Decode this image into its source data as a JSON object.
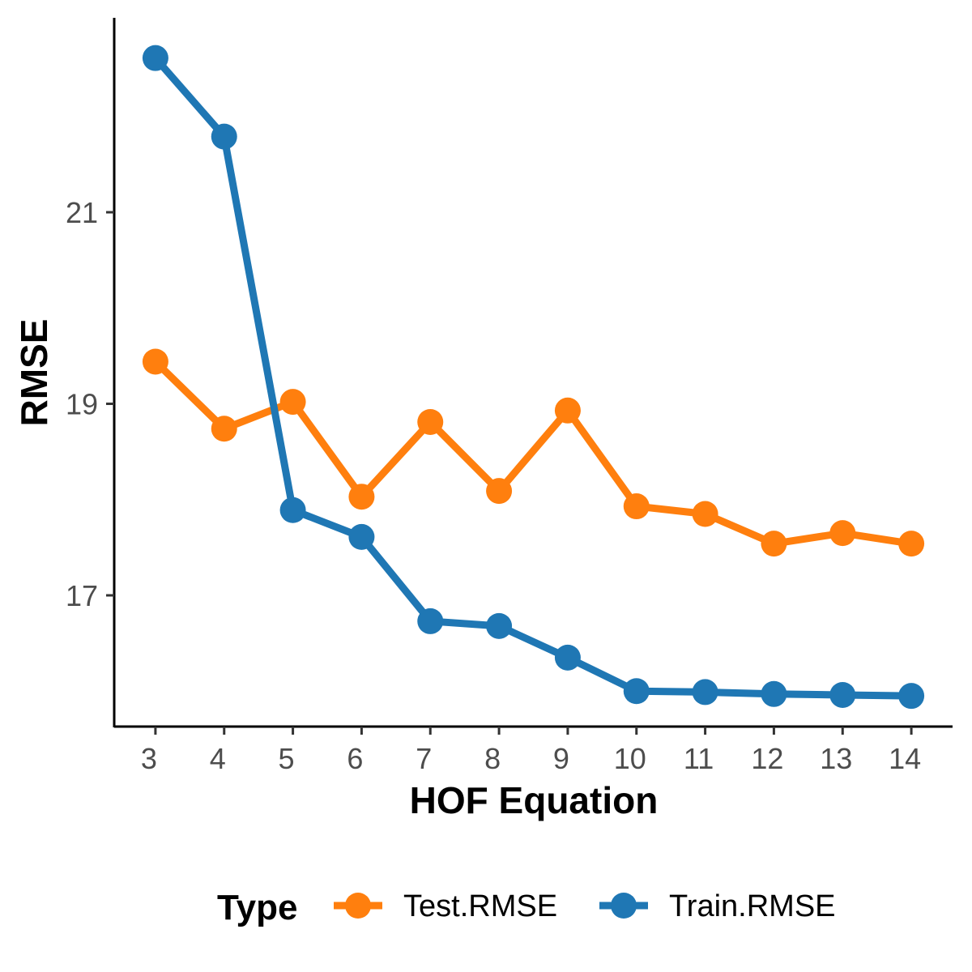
{
  "chart_data": {
    "type": "line",
    "xlabel": "HOF Equation",
    "ylabel": "RMSE",
    "x": [
      3,
      4,
      5,
      6,
      7,
      8,
      9,
      10,
      11,
      12,
      13,
      14
    ],
    "xlim": [
      2.4,
      14.6
    ],
    "ylim": [
      15.63,
      23.03
    ],
    "y_ticks": [
      17,
      19,
      21
    ],
    "grid": false,
    "legend": {
      "title": "Type",
      "position": "bottom"
    },
    "series": [
      {
        "name": "Test.RMSE",
        "color": "#ff7f0e",
        "values": [
          19.44,
          18.74,
          19.02,
          18.03,
          18.81,
          18.09,
          18.93,
          17.93,
          17.85,
          17.54,
          17.65,
          17.54
        ]
      },
      {
        "name": "Train.RMSE",
        "color": "#1f77b4",
        "values": [
          22.61,
          21.79,
          17.89,
          17.61,
          16.73,
          16.68,
          16.35,
          16.0,
          15.99,
          15.97,
          15.96,
          15.95
        ]
      }
    ]
  }
}
